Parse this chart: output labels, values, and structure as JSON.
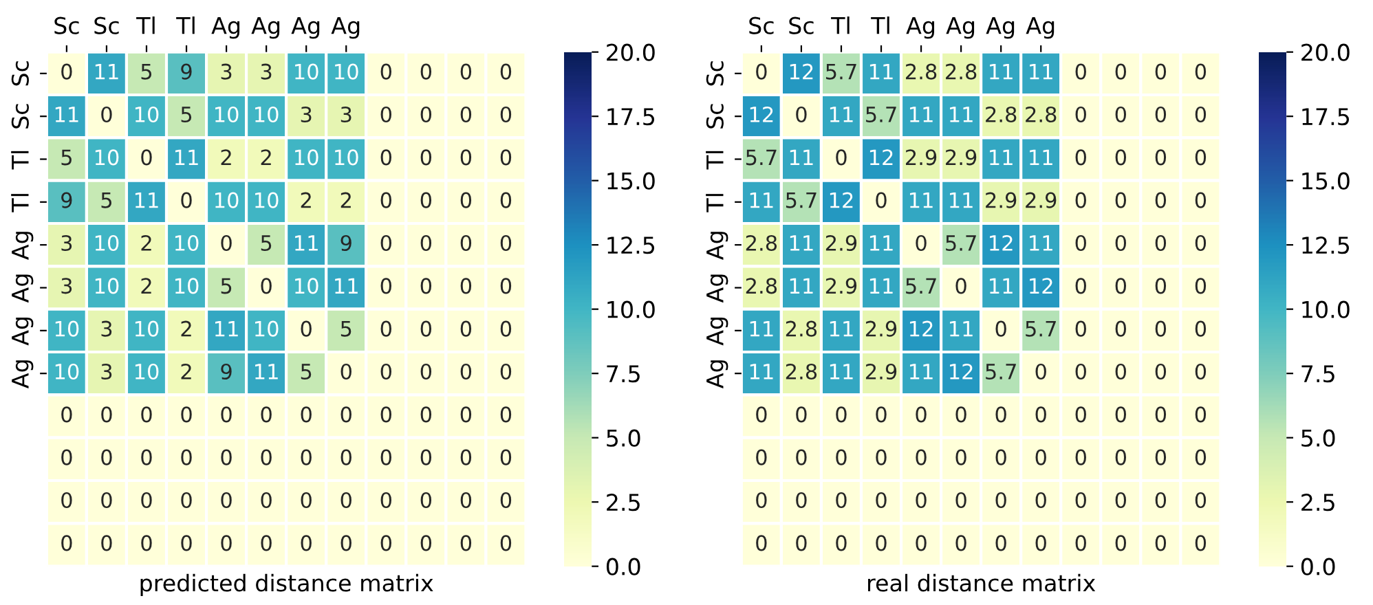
{
  "chart_data": [
    {
      "type": "heatmap",
      "xlabel": "predicted distance matrix",
      "categories": [
        "Sc",
        "Sc",
        "Tl",
        "Tl",
        "Ag",
        "Ag",
        "Ag",
        "Ag",
        null,
        null,
        null,
        null
      ],
      "y_categories": [
        "Sc",
        "Sc",
        "Tl",
        "Tl",
        "Ag",
        "Ag",
        "Ag",
        "Ag",
        null,
        null,
        null,
        null
      ],
      "cells": [
        [
          0,
          11,
          5,
          9,
          3,
          3,
          10,
          10,
          0,
          0,
          0,
          0
        ],
        [
          11,
          0,
          10,
          5,
          10,
          10,
          3,
          3,
          0,
          0,
          0,
          0
        ],
        [
          5,
          10,
          0,
          11,
          2,
          2,
          10,
          10,
          0,
          0,
          0,
          0
        ],
        [
          9,
          5,
          11,
          0,
          10,
          10,
          2,
          2,
          0,
          0,
          0,
          0
        ],
        [
          3,
          10,
          2,
          10,
          0,
          5,
          11,
          9,
          0,
          0,
          0,
          0
        ],
        [
          3,
          10,
          2,
          10,
          5,
          0,
          10,
          11,
          0,
          0,
          0,
          0
        ],
        [
          10,
          3,
          10,
          2,
          11,
          10,
          0,
          5,
          0,
          0,
          0,
          0
        ],
        [
          10,
          3,
          10,
          2,
          9,
          11,
          5,
          0,
          0,
          0,
          0,
          0
        ],
        [
          0,
          0,
          0,
          0,
          0,
          0,
          0,
          0,
          0,
          0,
          0,
          0
        ],
        [
          0,
          0,
          0,
          0,
          0,
          0,
          0,
          0,
          0,
          0,
          0,
          0
        ],
        [
          0,
          0,
          0,
          0,
          0,
          0,
          0,
          0,
          0,
          0,
          0,
          0
        ],
        [
          0,
          0,
          0,
          0,
          0,
          0,
          0,
          0,
          0,
          0,
          0,
          0
        ]
      ],
      "data_labels": true,
      "clim": [
        0,
        20
      ],
      "cticks": [
        {
          "value": 0,
          "label": "0.0"
        },
        {
          "value": 2.5,
          "label": "2.5"
        },
        {
          "value": 5,
          "label": "5.0"
        },
        {
          "value": 7.5,
          "label": "7.5"
        },
        {
          "value": 10,
          "label": "10.0"
        },
        {
          "value": 12.5,
          "label": "12.5"
        },
        {
          "value": 15,
          "label": "15.0"
        },
        {
          "value": 17.5,
          "label": "17.5"
        },
        {
          "value": 20,
          "label": "20.0"
        }
      ]
    },
    {
      "type": "heatmap",
      "xlabel": "real distance matrix",
      "categories": [
        "Sc",
        "Sc",
        "Tl",
        "Tl",
        "Ag",
        "Ag",
        "Ag",
        "Ag",
        null,
        null,
        null,
        null
      ],
      "y_categories": [
        "Sc",
        "Sc",
        "Tl",
        "Tl",
        "Ag",
        "Ag",
        "Ag",
        "Ag",
        null,
        null,
        null,
        null
      ],
      "cells": [
        [
          0,
          12,
          5.7,
          11,
          2.8,
          2.8,
          11,
          11,
          0,
          0,
          0,
          0
        ],
        [
          12,
          0,
          11,
          5.7,
          11,
          11,
          2.8,
          2.8,
          0,
          0,
          0,
          0
        ],
        [
          5.7,
          11,
          0,
          12,
          2.9,
          2.9,
          11,
          11,
          0,
          0,
          0,
          0
        ],
        [
          11,
          5.7,
          12,
          0,
          11,
          11,
          2.9,
          2.9,
          0,
          0,
          0,
          0
        ],
        [
          2.8,
          11,
          2.9,
          11,
          0,
          5.7,
          12,
          11,
          0,
          0,
          0,
          0
        ],
        [
          2.8,
          11,
          2.9,
          11,
          5.7,
          0,
          11,
          12,
          0,
          0,
          0,
          0
        ],
        [
          11,
          2.8,
          11,
          2.9,
          12,
          11,
          0,
          5.7,
          0,
          0,
          0,
          0
        ],
        [
          11,
          2.8,
          11,
          2.9,
          11,
          12,
          5.7,
          0,
          0,
          0,
          0,
          0
        ],
        [
          0,
          0,
          0,
          0,
          0,
          0,
          0,
          0,
          0,
          0,
          0,
          0
        ],
        [
          0,
          0,
          0,
          0,
          0,
          0,
          0,
          0,
          0,
          0,
          0,
          0
        ],
        [
          0,
          0,
          0,
          0,
          0,
          0,
          0,
          0,
          0,
          0,
          0,
          0
        ],
        [
          0,
          0,
          0,
          0,
          0,
          0,
          0,
          0,
          0,
          0,
          0,
          0
        ]
      ],
      "data_labels": true,
      "clim": [
        0,
        20
      ],
      "cticks": [
        {
          "value": 0,
          "label": "0.0"
        },
        {
          "value": 2.5,
          "label": "2.5"
        },
        {
          "value": 5,
          "label": "5.0"
        },
        {
          "value": 7.5,
          "label": "7.5"
        },
        {
          "value": 10,
          "label": "10.0"
        },
        {
          "value": 12.5,
          "label": "12.5"
        },
        {
          "value": 15,
          "label": "15.0"
        },
        {
          "value": 17.5,
          "label": "17.5"
        },
        {
          "value": 20,
          "label": "20.0"
        }
      ]
    }
  ]
}
